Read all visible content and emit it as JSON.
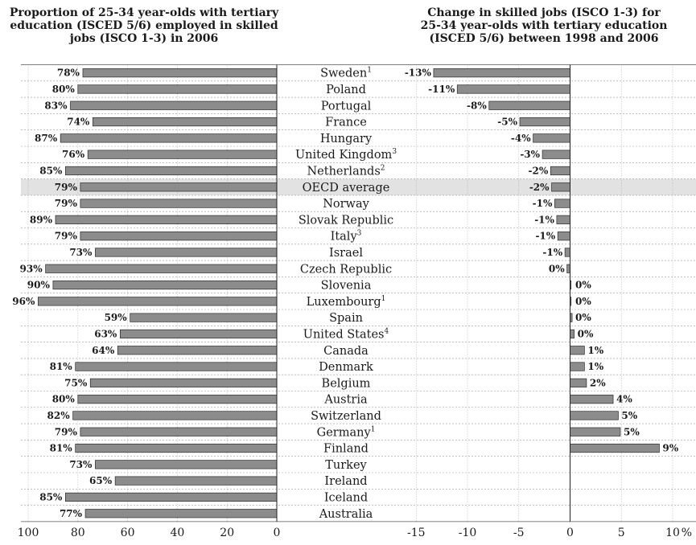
{
  "chart_data": [
    {
      "type": "bar",
      "title": "Proportion of 25-34 year-olds with tertiary education (ISCED 5/6) employed in skilled jobs (ISCO 1-3) in 2006",
      "title_lines": [
        "Proportion of 25-34 year-olds with tertiary",
        "education (ISCED 5/6) employed in skilled",
        "jobs (ISCO 1-3) in 2006"
      ],
      "orientation": "horizontal",
      "xlim": [
        100,
        0
      ],
      "xticks": [
        "100",
        "80",
        "60",
        "40",
        "20",
        "0"
      ],
      "categories": [
        "Sweden",
        "Poland",
        "Portugal",
        "France",
        "Hungary",
        "United Kingdom",
        "Netherlands",
        "OECD average",
        "Norway",
        "Slovak Republic",
        "Italy",
        "Israel",
        "Czech Republic",
        "Slovenia",
        "Luxembourg",
        "Spain",
        "United States",
        "Canada",
        "Denmark",
        "Belgium",
        "Austria",
        "Switzerland",
        "Germany",
        "Finland",
        "Turkey",
        "Ireland",
        "Iceland",
        "Australia"
      ],
      "values": [
        78,
        80,
        83,
        74,
        87,
        76,
        85,
        79,
        79,
        89,
        79,
        73,
        93,
        90,
        96,
        59,
        63,
        64,
        81,
        75,
        80,
        82,
        79,
        81,
        73,
        65,
        85,
        77
      ],
      "value_labels": [
        "78%",
        "80%",
        "83%",
        "74%",
        "87%",
        "76%",
        "85%",
        "79%",
        "79%",
        "89%",
        "79%",
        "73%",
        "93%",
        "90%",
        "96%",
        "59%",
        "63%",
        "64%",
        "81%",
        "75%",
        "80%",
        "82%",
        "79%",
        "81%",
        "73%",
        "65%",
        "85%",
        "77%"
      ],
      "highlight_category": "OECD average"
    },
    {
      "type": "bar",
      "title": "Change in skilled jobs (ISCO 1-3) for 25-34 year-olds with tertiary education (ISCED 5/6) between 1998 and 2006",
      "title_lines": [
        "Change in skilled jobs (ISCO 1-3) for",
        "25-34 year-olds with tertiary education",
        "(ISCED 5/6) between 1998 and 2006"
      ],
      "orientation": "horizontal",
      "xlim": [
        -15,
        10
      ],
      "xticks": [
        "-15",
        "-10",
        "-5",
        "0",
        "5",
        "10"
      ],
      "x_unit": "%",
      "categories": [
        "Sweden",
        "Poland",
        "Portugal",
        "France",
        "Hungary",
        "United Kingdom",
        "Netherlands",
        "OECD average",
        "Norway",
        "Slovak Republic",
        "Italy",
        "Israel",
        "Czech Republic",
        "Slovenia",
        "Luxembourg",
        "Spain",
        "United States",
        "Canada",
        "Denmark",
        "Belgium",
        "Austria",
        "Switzerland",
        "Germany",
        "Finland",
        "Turkey",
        "Ireland",
        "Iceland",
        "Australia"
      ],
      "values": [
        -13.3,
        -11,
        -7.9,
        -4.9,
        -3.6,
        -2.7,
        -1.9,
        -1.8,
        -1.5,
        -1.3,
        -1.2,
        -0.5,
        -0.3,
        0,
        0.1,
        0.2,
        0.4,
        1.4,
        1.4,
        1.6,
        4.2,
        4.7,
        4.9,
        8.7,
        null,
        null,
        null,
        null
      ],
      "value_labels": [
        "-13%",
        "-11%",
        "-8%",
        "-5%",
        "-4%",
        "-3%",
        "-2%",
        "-2%",
        "-1%",
        "-1%",
        "-1%",
        "-1%",
        "0%",
        "0%",
        "0%",
        "0%",
        "0%",
        "1%",
        "1%",
        "2%",
        "4%",
        "5%",
        "5%",
        "9%",
        "",
        "",
        "",
        ""
      ]
    }
  ],
  "country_labels": [
    {
      "name": "Sweden",
      "sup": "1"
    },
    {
      "name": "Poland",
      "sup": ""
    },
    {
      "name": "Portugal",
      "sup": ""
    },
    {
      "name": "France",
      "sup": ""
    },
    {
      "name": "Hungary",
      "sup": ""
    },
    {
      "name": "United Kingdom",
      "sup": "3"
    },
    {
      "name": "Netherlands",
      "sup": "2"
    },
    {
      "name": "OECD average",
      "sup": ""
    },
    {
      "name": "Norway",
      "sup": ""
    },
    {
      "name": "Slovak Republic",
      "sup": ""
    },
    {
      "name": "Italy",
      "sup": "3"
    },
    {
      "name": "Israel",
      "sup": ""
    },
    {
      "name": "Czech Republic",
      "sup": ""
    },
    {
      "name": "Slovenia",
      "sup": ""
    },
    {
      "name": "Luxembourg",
      "sup": "1"
    },
    {
      "name": "Spain",
      "sup": ""
    },
    {
      "name": "United States",
      "sup": "4"
    },
    {
      "name": "Canada",
      "sup": ""
    },
    {
      "name": "Denmark",
      "sup": ""
    },
    {
      "name": "Belgium",
      "sup": ""
    },
    {
      "name": "Austria",
      "sup": ""
    },
    {
      "name": "Switzerland",
      "sup": ""
    },
    {
      "name": "Germany",
      "sup": "1"
    },
    {
      "name": "Finland",
      "sup": ""
    },
    {
      "name": "Turkey",
      "sup": ""
    },
    {
      "name": "Ireland",
      "sup": ""
    },
    {
      "name": "Iceland",
      "sup": ""
    },
    {
      "name": "Australia",
      "sup": ""
    }
  ],
  "colors": {
    "bar_fill": "#8c8c8c",
    "bar_stroke": "#2a2a2a",
    "highlight_band": "#e2e2e2",
    "grid": "#9a9a9a",
    "text": "#1a1a1a"
  }
}
